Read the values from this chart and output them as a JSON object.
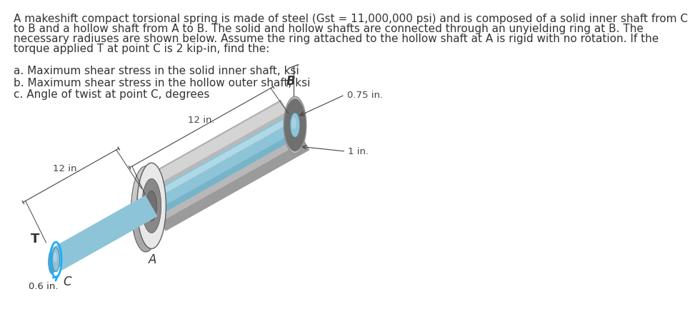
{
  "title_text": "A makeshift compact torsional spring is made of steel (Gst = 11,000,000 psi) and is composed of a solid inner shaft from C\nto B and a hollow shaft from A to B. The solid and hollow shafts are connected through an unyielding ring at B. The\nnecessary radiuses are shown below. Assume the ring attached to the hollow shaft at A is rigid with no rotation. If the\ntorque applied T at point C is 2 kip-in, find the:",
  "item_a": "a. Maximum shear stress in the solid inner shaft, ksi",
  "item_b": "b. Maximum shear stress in the hollow outer shaft, ksi",
  "item_c": "c. Angle of twist at point C, degrees",
  "label_12in_left": "12 in.",
  "label_12in_right": "12 in.",
  "label_B": "B",
  "label_A": "A",
  "label_C": "C",
  "label_T": "T",
  "label_075": "0.75 in.",
  "label_1in": "1 in.",
  "label_06": "0.6 in.",
  "bg_color": "#ffffff",
  "text_color": "#333333",
  "shaft_blue_light": "#b8dce8",
  "shaft_blue_mid": "#8ec4d8",
  "shaft_blue_dark": "#6aaac0",
  "outer_tube_light": "#d8d8d8",
  "outer_tube_mid": "#b8b8b8",
  "outer_tube_dark": "#909090",
  "ring_light": "#e8e8e8",
  "ring_mid": "#c8c8c8",
  "ring_dark": "#a8a8a8",
  "torque_color": "#1aadff",
  "dim_color": "#444444",
  "label_color": "#333333",
  "font_size_body": 11,
  "font_size_label": 10,
  "font_size_dim": 9.5,
  "font_size_points": 12
}
